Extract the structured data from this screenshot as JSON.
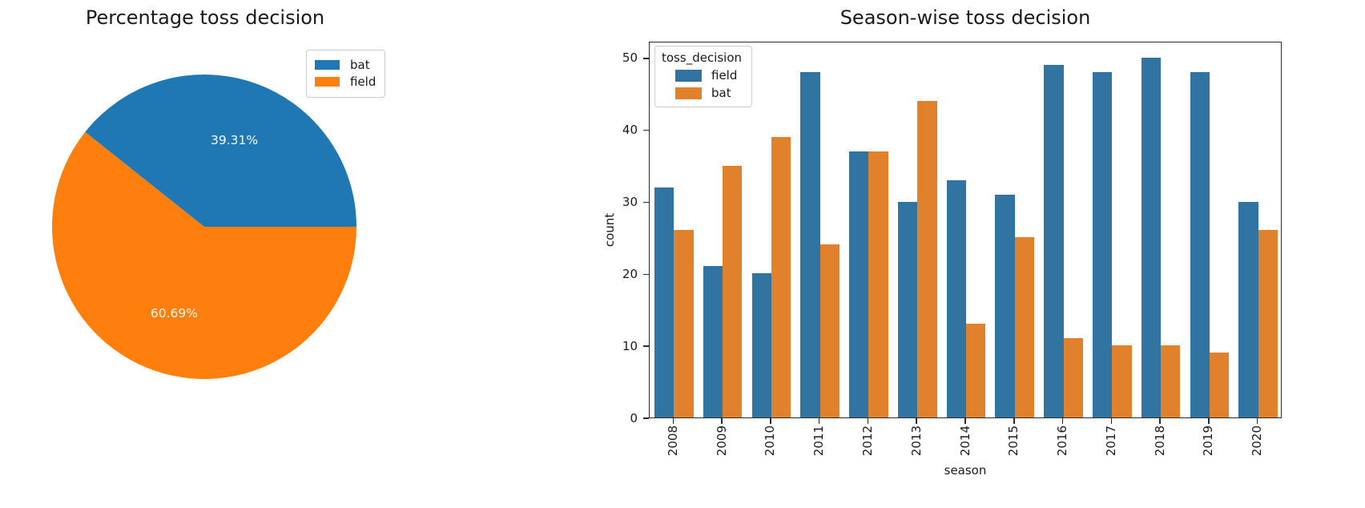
{
  "chart_data": [
    {
      "type": "pie",
      "title": "Percentage toss decision",
      "labels": [
        "bat",
        "field"
      ],
      "values": [
        39.31,
        60.69
      ],
      "value_labels": [
        "39.31%",
        "60.69%"
      ],
      "colors": [
        "#1f77b4",
        "#ff7f0e"
      ],
      "start_angle": 0,
      "direction": "counterclockwise",
      "legend_position": "upper right",
      "pct_label_color": "#fafafa"
    },
    {
      "type": "bar",
      "title": "Season-wise toss decision",
      "xlabel": "season",
      "ylabel": "count",
      "legend_title": "toss_decision",
      "legend_position": "upper left",
      "categories": [
        "2008",
        "2009",
        "2010",
        "2011",
        "2012",
        "2013",
        "2014",
        "2015",
        "2016",
        "2017",
        "2018",
        "2019",
        "2020"
      ],
      "series": [
        {
          "name": "field",
          "color": "#3274a1",
          "values": [
            32,
            21,
            20,
            48,
            37,
            30,
            33,
            31,
            49,
            48,
            50,
            48,
            30
          ]
        },
        {
          "name": "bat",
          "color": "#e1812c",
          "values": [
            26,
            35,
            39,
            24,
            37,
            44,
            13,
            25,
            11,
            10,
            10,
            9,
            26
          ]
        }
      ],
      "ylim": [
        0,
        52.33
      ],
      "yticks": [
        0,
        10,
        20,
        30,
        40,
        50
      ],
      "grid": false,
      "xtick_rotation": 90
    }
  ]
}
